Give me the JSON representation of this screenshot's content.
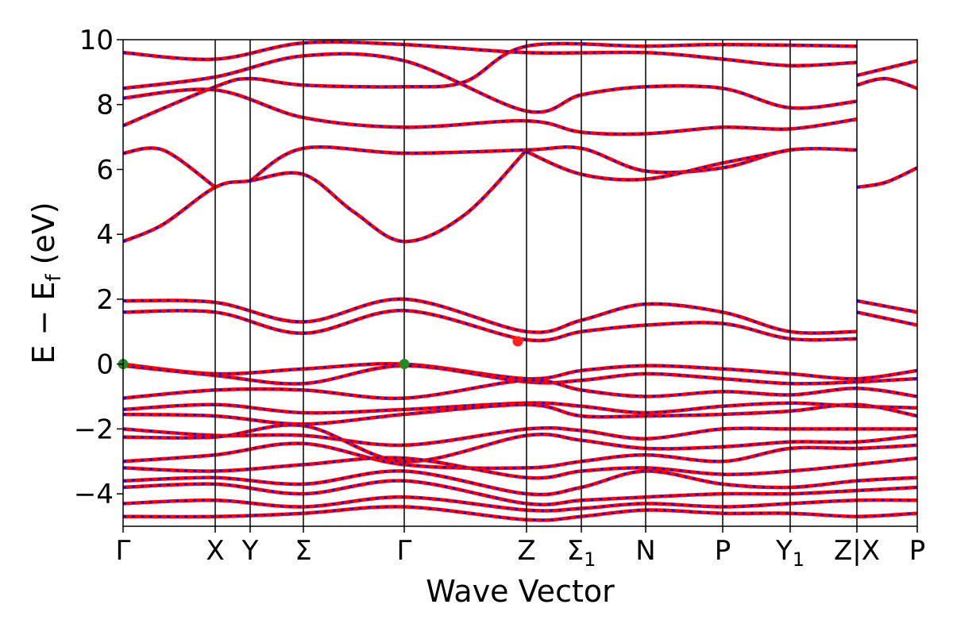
{
  "chart_data": {
    "type": "line",
    "xlabel": "Wave Vector",
    "ylabel": {
      "main": "E − E",
      "sub": "f",
      "unit": "(eV)"
    },
    "ylim": [
      -5,
      10
    ],
    "yticks": [
      -4,
      -2,
      0,
      2,
      4,
      6,
      8,
      10
    ],
    "ytick_labels": [
      "−4",
      "−2",
      "0",
      "2",
      "4",
      "6",
      "8",
      "10"
    ],
    "high_symmetry_points": [
      {
        "label": "Γ",
        "x": 0.0
      },
      {
        "label": "X",
        "x": 0.116
      },
      {
        "label": "Y",
        "x": 0.16
      },
      {
        "label": "Σ",
        "x": 0.227
      },
      {
        "label": "Γ",
        "x": 0.354
      },
      {
        "label": "Z",
        "x": 0.508
      },
      {
        "label": "Σ",
        "sub": "1",
        "x": 0.577
      },
      {
        "label": "N",
        "x": 0.658
      },
      {
        "label": "P",
        "x": 0.755
      },
      {
        "label": "Y",
        "sub": "1",
        "x": 0.84
      },
      {
        "label": "Z|X",
        "x": 0.924
      },
      {
        "label": "P",
        "x": 1.0
      }
    ],
    "grid": false,
    "line_colors": {
      "band_red": "#ff0000",
      "band_blue": "#0000ff",
      "hs_lines": "#000000"
    },
    "markers": [
      {
        "name": "VBM",
        "x": 0.0,
        "y": 0.0,
        "color": "#228b22"
      },
      {
        "name": "VBM",
        "x": 0.354,
        "y": 0.0,
        "color": "#228b22"
      },
      {
        "name": "CBM",
        "x": 0.497,
        "y": 0.7,
        "color": "#ff2020"
      }
    ],
    "series": [
      {
        "values": [
          [
            0,
            3.78
          ],
          [
            0.05,
            4.3
          ],
          [
            0.116,
            5.45
          ],
          [
            0.16,
            5.65
          ],
          [
            0.227,
            5.85
          ],
          [
            0.29,
            4.7
          ],
          [
            0.354,
            3.78
          ],
          [
            0.43,
            4.6
          ],
          [
            0.508,
            6.6
          ]
        ]
      },
      {
        "values": [
          [
            0,
            6.5
          ],
          [
            0.05,
            6.6
          ],
          [
            0.116,
            5.45
          ]
        ]
      },
      {
        "values": [
          [
            0.16,
            5.65
          ],
          [
            0.227,
            6.65
          ],
          [
            0.354,
            6.5
          ],
          [
            0.508,
            6.6
          ],
          [
            0.577,
            6.65
          ],
          [
            0.658,
            5.95
          ],
          [
            0.755,
            6.05
          ],
          [
            0.84,
            6.6
          ],
          [
            0.924,
            6.6
          ]
        ]
      },
      {
        "values": [
          [
            0.508,
            6.55
          ],
          [
            0.577,
            5.85
          ],
          [
            0.658,
            5.7
          ],
          [
            0.755,
            6.2
          ],
          [
            0.84,
            6.6
          ]
        ]
      },
      {
        "values": [
          [
            0.924,
            5.45
          ],
          [
            0.96,
            5.6
          ],
          [
            1,
            6.05
          ]
        ]
      },
      {
        "values": [
          [
            0,
            7.35
          ],
          [
            0.116,
            8.55
          ],
          [
            0.16,
            8.8
          ],
          [
            0.227,
            8.6
          ],
          [
            0.354,
            8.55
          ],
          [
            0.43,
            8.7
          ],
          [
            0.508,
            9.8
          ],
          [
            0.658,
            9.8
          ],
          [
            0.755,
            9.85
          ],
          [
            0.924,
            9.8
          ]
        ]
      },
      {
        "values": [
          [
            0,
            8.2
          ],
          [
            0.116,
            8.45
          ],
          [
            0.227,
            7.6
          ],
          [
            0.354,
            7.3
          ],
          [
            0.508,
            7.5
          ],
          [
            0.577,
            7.15
          ],
          [
            0.658,
            7.1
          ],
          [
            0.755,
            7.3
          ],
          [
            0.84,
            7.25
          ],
          [
            0.924,
            7.55
          ]
        ]
      },
      {
        "values": [
          [
            0,
            8.5
          ],
          [
            0.116,
            8.85
          ],
          [
            0.227,
            9.5
          ],
          [
            0.354,
            9.35
          ],
          [
            0.508,
            7.8
          ],
          [
            0.577,
            8.3
          ],
          [
            0.658,
            8.55
          ],
          [
            0.755,
            8.5
          ],
          [
            0.84,
            7.9
          ],
          [
            0.924,
            8.1
          ]
        ]
      },
      {
        "values": [
          [
            0,
            9.6
          ],
          [
            0.116,
            9.4
          ],
          [
            0.227,
            9.9
          ],
          [
            0.354,
            9.85
          ],
          [
            0.508,
            9.6
          ],
          [
            0.658,
            9.6
          ],
          [
            0.755,
            9.4
          ],
          [
            0.84,
            9.2
          ],
          [
            0.924,
            9.3
          ]
        ]
      },
      {
        "values": [
          [
            0.924,
            8.6
          ],
          [
            0.96,
            8.8
          ],
          [
            1,
            8.5
          ]
        ]
      },
      {
        "values": [
          [
            0.924,
            8.9
          ],
          [
            1,
            9.35
          ]
        ]
      },
      {
        "values": [
          [
            0,
            1.95
          ],
          [
            0.116,
            1.9
          ],
          [
            0.227,
            1.3
          ],
          [
            0.354,
            2.0
          ],
          [
            0.508,
            1.0
          ],
          [
            0.577,
            1.35
          ],
          [
            0.658,
            1.85
          ],
          [
            0.755,
            1.6
          ],
          [
            0.84,
            1.0
          ],
          [
            0.924,
            1.0
          ]
        ]
      },
      {
        "values": [
          [
            0,
            1.6
          ],
          [
            0.116,
            1.6
          ],
          [
            0.227,
            0.95
          ],
          [
            0.354,
            1.65
          ],
          [
            0.508,
            0.75
          ],
          [
            0.577,
            1.0
          ],
          [
            0.658,
            1.2
          ],
          [
            0.755,
            1.25
          ],
          [
            0.84,
            0.78
          ],
          [
            0.924,
            0.78
          ]
        ]
      },
      {
        "values": [
          [
            0.924,
            1.95
          ],
          [
            1,
            1.6
          ]
        ]
      },
      {
        "values": [
          [
            0.924,
            1.6
          ],
          [
            1,
            1.2
          ]
        ]
      },
      {
        "values": [
          [
            0,
            0.0
          ],
          [
            0.116,
            -0.3
          ],
          [
            0.227,
            -0.15
          ],
          [
            0.354,
            0.0
          ],
          [
            0.508,
            -0.45
          ],
          [
            0.577,
            -0.2
          ],
          [
            0.658,
            -0.05
          ],
          [
            0.755,
            -0.15
          ],
          [
            0.84,
            -0.3
          ],
          [
            0.924,
            -0.45
          ],
          [
            1,
            -0.2
          ]
        ]
      },
      {
        "values": [
          [
            0,
            -0.05
          ],
          [
            0.116,
            -0.35
          ],
          [
            0.227,
            -0.6
          ],
          [
            0.354,
            -0.05
          ],
          [
            0.508,
            -0.55
          ],
          [
            0.577,
            -0.5
          ],
          [
            0.658,
            -0.3
          ],
          [
            0.755,
            -0.45
          ],
          [
            0.84,
            -0.6
          ],
          [
            0.924,
            -0.55
          ],
          [
            1,
            -0.45
          ]
        ]
      },
      {
        "values": [
          [
            0,
            -1.05
          ],
          [
            0.116,
            -0.8
          ],
          [
            0.227,
            -0.8
          ],
          [
            0.354,
            -1.05
          ],
          [
            0.508,
            -0.5
          ],
          [
            0.577,
            -0.8
          ],
          [
            0.658,
            -1.0
          ],
          [
            0.755,
            -0.85
          ],
          [
            0.84,
            -0.95
          ],
          [
            0.924,
            -0.75
          ],
          [
            1,
            -1.0
          ]
        ]
      },
      {
        "values": [
          [
            0,
            -1.4
          ],
          [
            0.116,
            -1.25
          ],
          [
            0.227,
            -1.5
          ],
          [
            0.354,
            -1.4
          ],
          [
            0.508,
            -1.2
          ],
          [
            0.577,
            -1.3
          ],
          [
            0.658,
            -1.5
          ],
          [
            0.755,
            -1.3
          ],
          [
            0.84,
            -1.2
          ],
          [
            0.924,
            -1.3
          ],
          [
            1,
            -1.35
          ]
        ]
      },
      {
        "values": [
          [
            0,
            -1.55
          ],
          [
            0.116,
            -1.6
          ],
          [
            0.227,
            -1.85
          ],
          [
            0.354,
            -1.55
          ],
          [
            0.508,
            -1.25
          ],
          [
            0.577,
            -1.6
          ],
          [
            0.658,
            -1.6
          ],
          [
            0.755,
            -1.55
          ],
          [
            0.84,
            -1.45
          ],
          [
            0.924,
            -1.25
          ],
          [
            1,
            -1.6
          ]
        ]
      },
      {
        "values": [
          [
            0,
            -2.0
          ],
          [
            0.116,
            -2.2
          ],
          [
            0.227,
            -2.2
          ],
          [
            0.354,
            -2.5
          ],
          [
            0.508,
            -2.0
          ],
          [
            0.577,
            -2.05
          ],
          [
            0.658,
            -2.3
          ],
          [
            0.755,
            -2.0
          ],
          [
            0.84,
            -2.0
          ],
          [
            0.924,
            -2.0
          ],
          [
            1,
            -2.0
          ]
        ]
      },
      {
        "values": [
          [
            0,
            -2.25
          ],
          [
            0.116,
            -2.25
          ],
          [
            0.227,
            -1.9
          ],
          [
            0.354,
            -3.0
          ],
          [
            0.508,
            -2.2
          ],
          [
            0.577,
            -2.35
          ],
          [
            0.658,
            -2.6
          ],
          [
            0.755,
            -2.55
          ],
          [
            0.84,
            -2.4
          ],
          [
            0.924,
            -2.4
          ],
          [
            1,
            -2.2
          ]
        ]
      },
      {
        "values": [
          [
            0,
            -3.0
          ],
          [
            0.116,
            -2.8
          ],
          [
            0.227,
            -2.45
          ],
          [
            0.354,
            -3.1
          ],
          [
            0.508,
            -3.2
          ],
          [
            0.577,
            -3.0
          ],
          [
            0.658,
            -2.8
          ],
          [
            0.755,
            -3.0
          ],
          [
            0.84,
            -2.6
          ],
          [
            0.924,
            -2.6
          ],
          [
            1,
            -2.5
          ]
        ]
      },
      {
        "values": [
          [
            0,
            -3.2
          ],
          [
            0.116,
            -3.3
          ],
          [
            0.227,
            -3.1
          ],
          [
            0.354,
            -2.9
          ],
          [
            0.508,
            -3.5
          ],
          [
            0.577,
            -3.3
          ],
          [
            0.658,
            -3.2
          ],
          [
            0.755,
            -3.4
          ],
          [
            0.84,
            -3.3
          ],
          [
            0.924,
            -3.1
          ],
          [
            1,
            -2.9
          ]
        ]
      },
      {
        "values": [
          [
            0,
            -3.6
          ],
          [
            0.116,
            -3.5
          ],
          [
            0.227,
            -3.7
          ],
          [
            0.354,
            -3.3
          ],
          [
            0.508,
            -4.0
          ],
          [
            0.577,
            -3.8
          ],
          [
            0.658,
            -3.3
          ],
          [
            0.755,
            -3.7
          ],
          [
            0.84,
            -3.8
          ],
          [
            0.924,
            -3.6
          ],
          [
            1,
            -3.5
          ]
        ]
      },
      {
        "values": [
          [
            0,
            -3.8
          ],
          [
            0.116,
            -3.7
          ],
          [
            0.227,
            -4.0
          ],
          [
            0.354,
            -3.6
          ],
          [
            0.508,
            -4.3
          ],
          [
            0.577,
            -4.2
          ],
          [
            0.658,
            -4.1
          ],
          [
            0.755,
            -4.0
          ],
          [
            0.84,
            -4.0
          ],
          [
            0.924,
            -3.9
          ],
          [
            1,
            -3.8
          ]
        ]
      },
      {
        "values": [
          [
            0,
            -4.3
          ],
          [
            0.116,
            -4.2
          ],
          [
            0.227,
            -4.4
          ],
          [
            0.354,
            -4.1
          ],
          [
            0.508,
            -4.5
          ],
          [
            0.577,
            -4.45
          ],
          [
            0.658,
            -4.3
          ],
          [
            0.755,
            -4.4
          ],
          [
            0.84,
            -4.3
          ],
          [
            0.924,
            -4.2
          ],
          [
            1,
            -4.2
          ]
        ]
      },
      {
        "values": [
          [
            0,
            -4.7
          ],
          [
            0.116,
            -4.7
          ],
          [
            0.227,
            -4.6
          ],
          [
            0.354,
            -4.4
          ],
          [
            0.508,
            -4.8
          ],
          [
            0.577,
            -4.7
          ],
          [
            0.658,
            -4.5
          ],
          [
            0.755,
            -4.6
          ],
          [
            0.84,
            -4.6
          ],
          [
            0.924,
            -4.7
          ],
          [
            1,
            -4.6
          ]
        ]
      }
    ]
  }
}
